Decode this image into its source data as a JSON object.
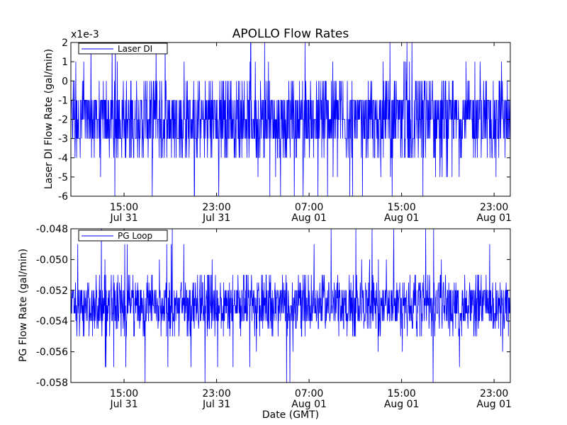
{
  "figure": {
    "title": "APOLLO Flow Rates",
    "xlabel": "Date (GMT)"
  },
  "chart_data": [
    {
      "type": "line",
      "title": "APOLLO Flow Rates",
      "ylabel": "Laser DI Flow Rate (gal/min)",
      "exponent_label": "x1e-3",
      "ylim": [
        -6,
        2
      ],
      "yticks": [
        -6,
        -5,
        -4,
        -3,
        -2,
        -1,
        0,
        1,
        2
      ],
      "ytick_labels": [
        "-6",
        "-5",
        "-4",
        "-3",
        "-2",
        "-1",
        "0",
        "1",
        "2"
      ],
      "xlim_hours": [
        10.4,
        48.4
      ],
      "xticks_hours": [
        15,
        23,
        31,
        39,
        47
      ],
      "xtick_labels": [
        [
          "15:00",
          "Jul 31"
        ],
        [
          "23:00",
          "Jul 31"
        ],
        [
          "07:00",
          "Aug 01"
        ],
        [
          "15:00",
          "Aug 01"
        ],
        [
          "23:00",
          "Aug 01"
        ]
      ],
      "legend": {
        "entries": [
          "Laser DI"
        ],
        "loc": "upper-left"
      },
      "series": [
        {
          "name": "Laser DI",
          "color": "#0000ff",
          "baseline": -2,
          "common_values": [
            -3,
            -2,
            -1
          ],
          "occasional_values": [
            -4,
            0
          ],
          "rare_values": [
            -5,
            1,
            2,
            -6
          ]
        }
      ],
      "grid": false
    },
    {
      "type": "line",
      "ylabel": "PG Flow Rate (gal/min)",
      "ylim": [
        -0.058,
        -0.048
      ],
      "yticks": [
        -0.058,
        -0.056,
        -0.054,
        -0.052,
        -0.05,
        -0.048
      ],
      "ytick_labels": [
        "-0.058",
        "-0.056",
        "-0.054",
        "-0.052",
        "-0.050",
        "-0.048"
      ],
      "xlim_hours": [
        10.4,
        48.4
      ],
      "xticks_hours": [
        15,
        23,
        31,
        39,
        47
      ],
      "xtick_labels": [
        [
          "15:00",
          "Jul 31"
        ],
        [
          "23:00",
          "Jul 31"
        ],
        [
          "07:00",
          "Aug 01"
        ],
        [
          "15:00",
          "Aug 01"
        ],
        [
          "23:00",
          "Aug 01"
        ]
      ],
      "xlabel": "Date (GMT)",
      "legend": {
        "entries": [
          "PG Loop"
        ],
        "loc": "upper-left"
      },
      "series": [
        {
          "name": "PG Loop",
          "color": "#0000ff",
          "baseline": -0.0535,
          "common_values": [
            -0.054,
            -0.0535,
            -0.053,
            -0.0525,
            -0.052
          ],
          "occasional_values": [
            -0.0545,
            -0.0515,
            -0.051,
            -0.055
          ],
          "rare_values": [
            -0.05,
            -0.049,
            -0.056,
            -0.057,
            -0.048,
            -0.058
          ]
        }
      ],
      "grid": false
    }
  ]
}
